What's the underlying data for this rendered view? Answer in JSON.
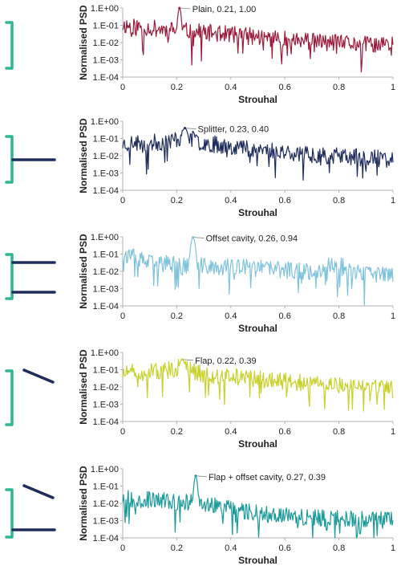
{
  "chart_data": [
    {
      "type": "line",
      "xlabel": "Strouhal",
      "ylabel": "Normalised PSD",
      "xlim": [
        0,
        1
      ],
      "ylim": [
        0.0001,
        1
      ],
      "yscale": "log",
      "x_ticks": [
        "0",
        "0.2",
        "0.4",
        "0.6",
        "0.8",
        "1"
      ],
      "y_ticks": [
        "1.E+00",
        "1.E-01",
        "1.E-02",
        "1.E-03",
        "1.E-04"
      ],
      "color": "#9b1b3c",
      "noise_seed": 11,
      "trend": [
        [
          0,
          0.1
        ],
        [
          0.2,
          0.05
        ],
        [
          0.4,
          0.03
        ],
        [
          0.6,
          0.015
        ],
        [
          0.8,
          0.009
        ],
        [
          1,
          0.007
        ]
      ],
      "peak": {
        "x": 0.21,
        "y": 1.0,
        "width": 0.006
      },
      "annotation": "Plain, 0.21, 1.00",
      "icon": "plain"
    },
    {
      "type": "line",
      "xlabel": "Strouhal",
      "ylabel": "Normalised PSD",
      "xlim": [
        0,
        1
      ],
      "ylim": [
        0.0001,
        1
      ],
      "yscale": "log",
      "x_ticks": [
        "0",
        "0.2",
        "0.4",
        "0.6",
        "0.8",
        "1"
      ],
      "y_ticks": [
        "1.E+00",
        "1.E-01",
        "1.E-02",
        "1.E-03",
        "1.E-04"
      ],
      "color": "#1f2d5c",
      "noise_seed": 23,
      "trend": [
        [
          0,
          0.05
        ],
        [
          0.15,
          0.06
        ],
        [
          0.23,
          0.12
        ],
        [
          0.32,
          0.05
        ],
        [
          0.5,
          0.025
        ],
        [
          0.7,
          0.012
        ],
        [
          1,
          0.006
        ]
      ],
      "peak": {
        "x": 0.23,
        "y": 0.4,
        "width": 0.012
      },
      "annotation": "Splitter, 0.23, 0.40",
      "icon": "splitter"
    },
    {
      "type": "line",
      "xlabel": "Strouhal",
      "ylabel": "Normalised PSD",
      "xlim": [
        0,
        1
      ],
      "ylim": [
        0.0001,
        1
      ],
      "yscale": "log",
      "x_ticks": [
        "0",
        "0.2",
        "0.4",
        "0.6",
        "0.8",
        "1"
      ],
      "y_ticks": [
        "1.E+00",
        "1.E-01",
        "1.E-02",
        "1.E-03",
        "1.E-04"
      ],
      "color": "#7ec2dc",
      "noise_seed": 37,
      "trend": [
        [
          0,
          0.1
        ],
        [
          0.1,
          0.03
        ],
        [
          0.3,
          0.02
        ],
        [
          0.5,
          0.015
        ],
        [
          0.7,
          0.01
        ],
        [
          0.8,
          0.03
        ],
        [
          0.85,
          0.008
        ],
        [
          1,
          0.006
        ]
      ],
      "peak": {
        "x": 0.26,
        "y": 0.94,
        "width": 0.008
      },
      "annotation": "Offset cavity, 0.26, 0.94",
      "icon": "offset-cavity"
    },
    {
      "type": "line",
      "xlabel": "Strouhal",
      "ylabel": "Normalised PSD",
      "xlim": [
        0,
        1
      ],
      "ylim": [
        0.0001,
        1
      ],
      "yscale": "log",
      "x_ticks": [
        "0",
        "0.2",
        "0.4",
        "0.6",
        "0.8",
        "1"
      ],
      "y_ticks": [
        "1.E+00",
        "1.E-01",
        "1.E-02",
        "1.E-03",
        "1.E-04"
      ],
      "color": "#c7d12a",
      "noise_seed": 51,
      "trend": [
        [
          0,
          0.06
        ],
        [
          0.15,
          0.08
        ],
        [
          0.22,
          0.15
        ],
        [
          0.3,
          0.05
        ],
        [
          0.5,
          0.03
        ],
        [
          0.7,
          0.015
        ],
        [
          1,
          0.007
        ]
      ],
      "peak": {
        "x": 0.22,
        "y": 0.39,
        "width": 0.012
      },
      "annotation": "Flap, 0.22, 0.39",
      "icon": "flap"
    },
    {
      "type": "line",
      "xlabel": "Strouhal",
      "ylabel": "Normalised PSD",
      "xlim": [
        0,
        1
      ],
      "ylim": [
        0.0001,
        1
      ],
      "yscale": "log",
      "x_ticks": [
        "0",
        "0.2",
        "0.4",
        "0.6",
        "0.8",
        "1"
      ],
      "y_ticks": [
        "1.E+00",
        "1.E-01",
        "1.E-02",
        "1.E-03",
        "1.E-04"
      ],
      "color": "#1b9a9a",
      "noise_seed": 67,
      "trend": [
        [
          0,
          0.02
        ],
        [
          0.2,
          0.012
        ],
        [
          0.28,
          0.012
        ],
        [
          0.35,
          0.006
        ],
        [
          0.5,
          0.003
        ],
        [
          0.7,
          0.0015
        ],
        [
          1,
          0.001
        ]
      ],
      "peak": {
        "x": 0.27,
        "y": 0.39,
        "width": 0.006
      },
      "annotation": "Flap + offset cavity, 0.27, 0.39",
      "icon": "flap-offset-cavity"
    }
  ],
  "colors": {
    "bracket": "#2fb58f",
    "plate": "#1f2d5c",
    "axis": "#b0b0b0"
  }
}
